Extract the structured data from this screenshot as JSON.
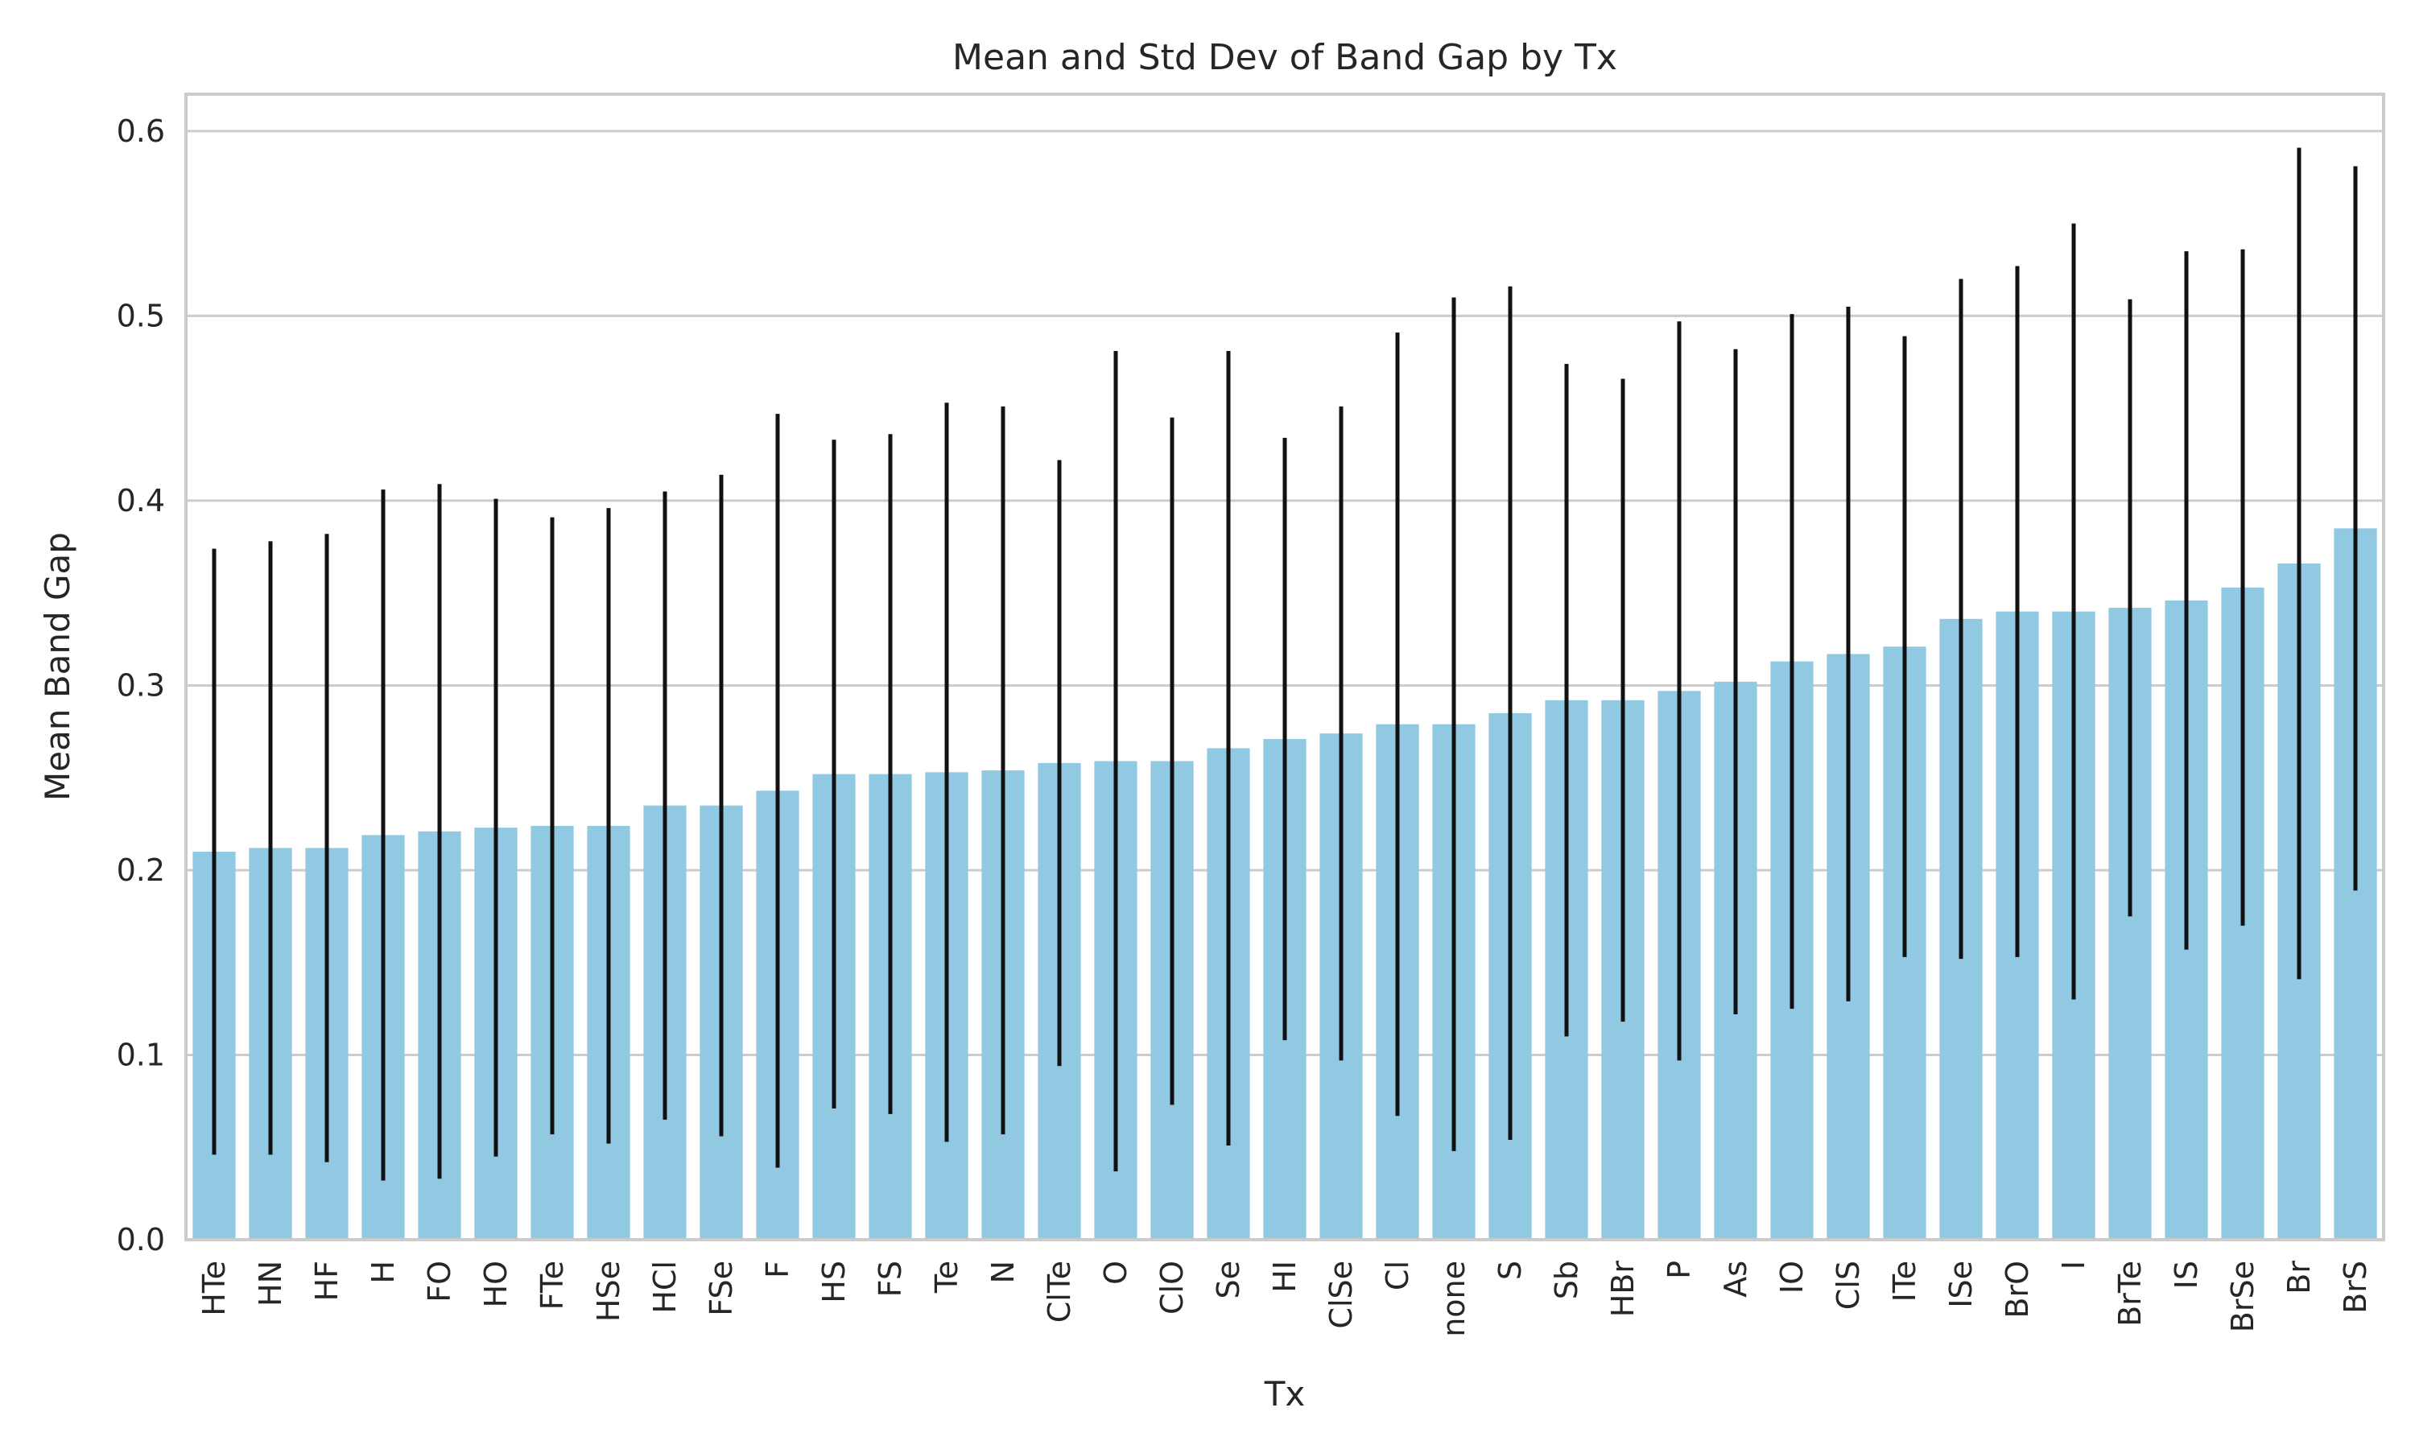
{
  "chart_data": {
    "type": "bar",
    "title": "Mean and Std Dev of Band Gap by Tx",
    "xlabel": "Tx",
    "ylabel": "Mean Band Gap",
    "ylim": [
      0,
      0.62
    ],
    "yticks": [
      0.0,
      0.1,
      0.2,
      0.3,
      0.4,
      0.5,
      0.6
    ],
    "ytick_labels": [
      "0.0",
      "0.1",
      "0.2",
      "0.3",
      "0.4",
      "0.5",
      "0.6"
    ],
    "grid": "horizontal",
    "bar_color": "#92c9e2",
    "error_color": "#111111",
    "categories": [
      "HTe",
      "HN",
      "HF",
      "H",
      "FO",
      "HO",
      "FTe",
      "HSe",
      "HCl",
      "FSe",
      "F",
      "HS",
      "FS",
      "Te",
      "N",
      "ClTe",
      "O",
      "ClO",
      "Se",
      "HI",
      "ClSe",
      "Cl",
      "none",
      "S",
      "Sb",
      "HBr",
      "P",
      "As",
      "IO",
      "ClS",
      "ITe",
      "ISe",
      "BrO",
      "I",
      "BrTe",
      "IS",
      "BrSe",
      "Br",
      "BrS"
    ],
    "values": [
      0.21,
      0.212,
      0.212,
      0.219,
      0.221,
      0.223,
      0.224,
      0.224,
      0.235,
      0.235,
      0.243,
      0.252,
      0.252,
      0.253,
      0.254,
      0.258,
      0.259,
      0.259,
      0.266,
      0.271,
      0.274,
      0.279,
      0.279,
      0.285,
      0.292,
      0.292,
      0.297,
      0.302,
      0.313,
      0.317,
      0.321,
      0.336,
      0.34,
      0.34,
      0.342,
      0.346,
      0.353,
      0.366,
      0.385
    ],
    "errors": [
      0.164,
      0.166,
      0.17,
      0.187,
      0.188,
      0.178,
      0.167,
      0.172,
      0.17,
      0.179,
      0.204,
      0.181,
      0.184,
      0.2,
      0.197,
      0.164,
      0.222,
      0.186,
      0.215,
      0.163,
      0.177,
      0.212,
      0.231,
      0.231,
      0.182,
      0.174,
      0.2,
      0.18,
      0.188,
      0.188,
      0.168,
      0.184,
      0.187,
      0.21,
      0.167,
      0.189,
      0.183,
      0.225,
      0.196
    ]
  }
}
